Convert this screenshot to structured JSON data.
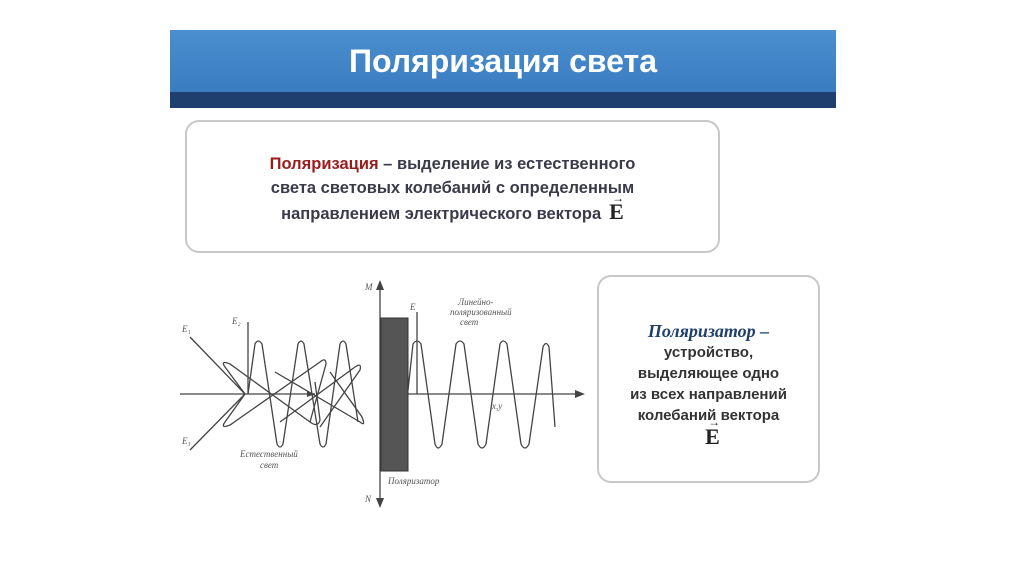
{
  "title": "Поляризация света",
  "definition": {
    "term": "Поляризация",
    "text_1": " – выделение из естественного",
    "text_2": "света световых колебаний с определенным",
    "text_3": "направлением электрического вектора",
    "vector": "E"
  },
  "polarizer_box": {
    "term": "Поляризатор –",
    "lines": [
      "устройство,",
      "выделяющее одно",
      "из всех направлений",
      "колебаний вектора"
    ],
    "vector": "E"
  },
  "diagram": {
    "labels": {
      "e1": "E₁",
      "e2": "E₂",
      "e3": "E₃",
      "m": "M",
      "n": "N",
      "e": "E",
      "natural": "Естественный",
      "natural_2": "свет",
      "linear": "Линейно-",
      "linear_2": "поляризованный",
      "linear_3": "свет",
      "polarizer": "Поляризатор",
      "axis": "x,y"
    }
  }
}
